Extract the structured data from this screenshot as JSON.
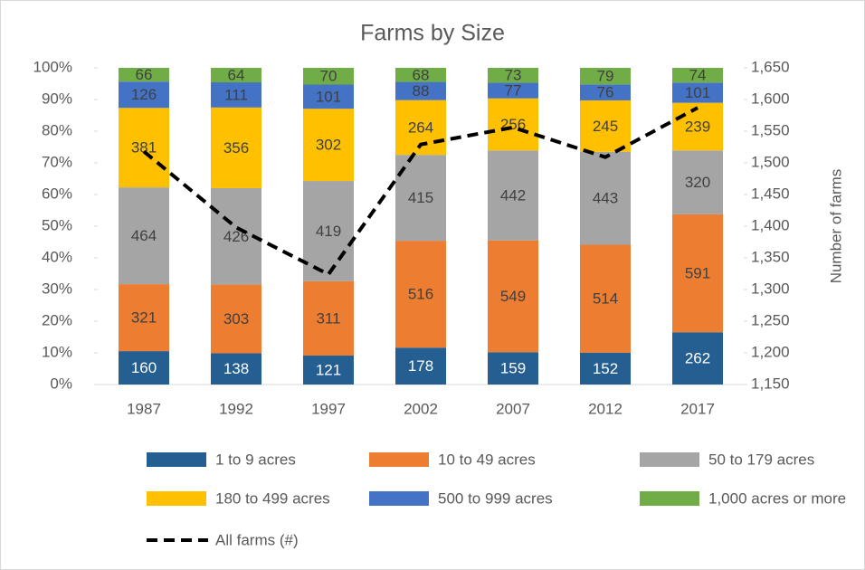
{
  "chart_data": {
    "type": "bar",
    "stack": "percent",
    "title": "Farms by Size",
    "categories": [
      "1987",
      "1992",
      "1997",
      "2002",
      "2007",
      "2012",
      "2017"
    ],
    "series": [
      {
        "name": "1 to 9 acres",
        "color": "#255e91",
        "values": [
          160,
          138,
          121,
          178,
          159,
          152,
          262
        ]
      },
      {
        "name": "10 to 49 acres",
        "color": "#ed7d31",
        "values": [
          321,
          303,
          311,
          516,
          549,
          514,
          591
        ]
      },
      {
        "name": "50 to 179 acres",
        "color": "#a5a5a5",
        "values": [
          464,
          426,
          419,
          415,
          442,
          443,
          320
        ]
      },
      {
        "name": "180 to 499 acres",
        "color": "#ffc000",
        "values": [
          381,
          356,
          302,
          264,
          256,
          245,
          239
        ]
      },
      {
        "name": "500 to 999 acres",
        "color": "#4472c4",
        "values": [
          126,
          111,
          101,
          88,
          77,
          76,
          101
        ]
      },
      {
        "name": "1,000 acres or more",
        "color": "#70ad47",
        "values": [
          66,
          64,
          70,
          68,
          73,
          79,
          74
        ]
      },
      {
        "name": "All farms (#)",
        "type": "line",
        "axis": "y2",
        "color": "#000000",
        "dashed": true,
        "values": [
          1518,
          1398,
          1324,
          1529,
          1556,
          1509,
          1587
        ]
      }
    ],
    "ylim": [
      0,
      100
    ],
    "yticks": [
      {
        "value": 0,
        "label": "0%"
      },
      {
        "value": 10,
        "label": "10%"
      },
      {
        "value": 20,
        "label": "20%"
      },
      {
        "value": 30,
        "label": "30%"
      },
      {
        "value": 40,
        "label": "40%"
      },
      {
        "value": 50,
        "label": "50%"
      },
      {
        "value": 60,
        "label": "60%"
      },
      {
        "value": 70,
        "label": "70%"
      },
      {
        "value": 80,
        "label": "80%"
      },
      {
        "value": 90,
        "label": "90%"
      },
      {
        "value": 100,
        "label": "100%"
      }
    ],
    "y2lim": [
      1150,
      1650
    ],
    "y2ticks": [
      {
        "value": 1150,
        "label": "1,150"
      },
      {
        "value": 1200,
        "label": "1,200"
      },
      {
        "value": 1250,
        "label": "1,250"
      },
      {
        "value": 1300,
        "label": "1,300"
      },
      {
        "value": 1350,
        "label": "1,350"
      },
      {
        "value": 1400,
        "label": "1,400"
      },
      {
        "value": 1450,
        "label": "1,450"
      },
      {
        "value": 1500,
        "label": "1,500"
      },
      {
        "value": 1550,
        "label": "1,550"
      },
      {
        "value": 1600,
        "label": "1,600"
      },
      {
        "value": 1650,
        "label": "1,650"
      }
    ],
    "y2label": "Number of farms",
    "legend": "bottom"
  }
}
